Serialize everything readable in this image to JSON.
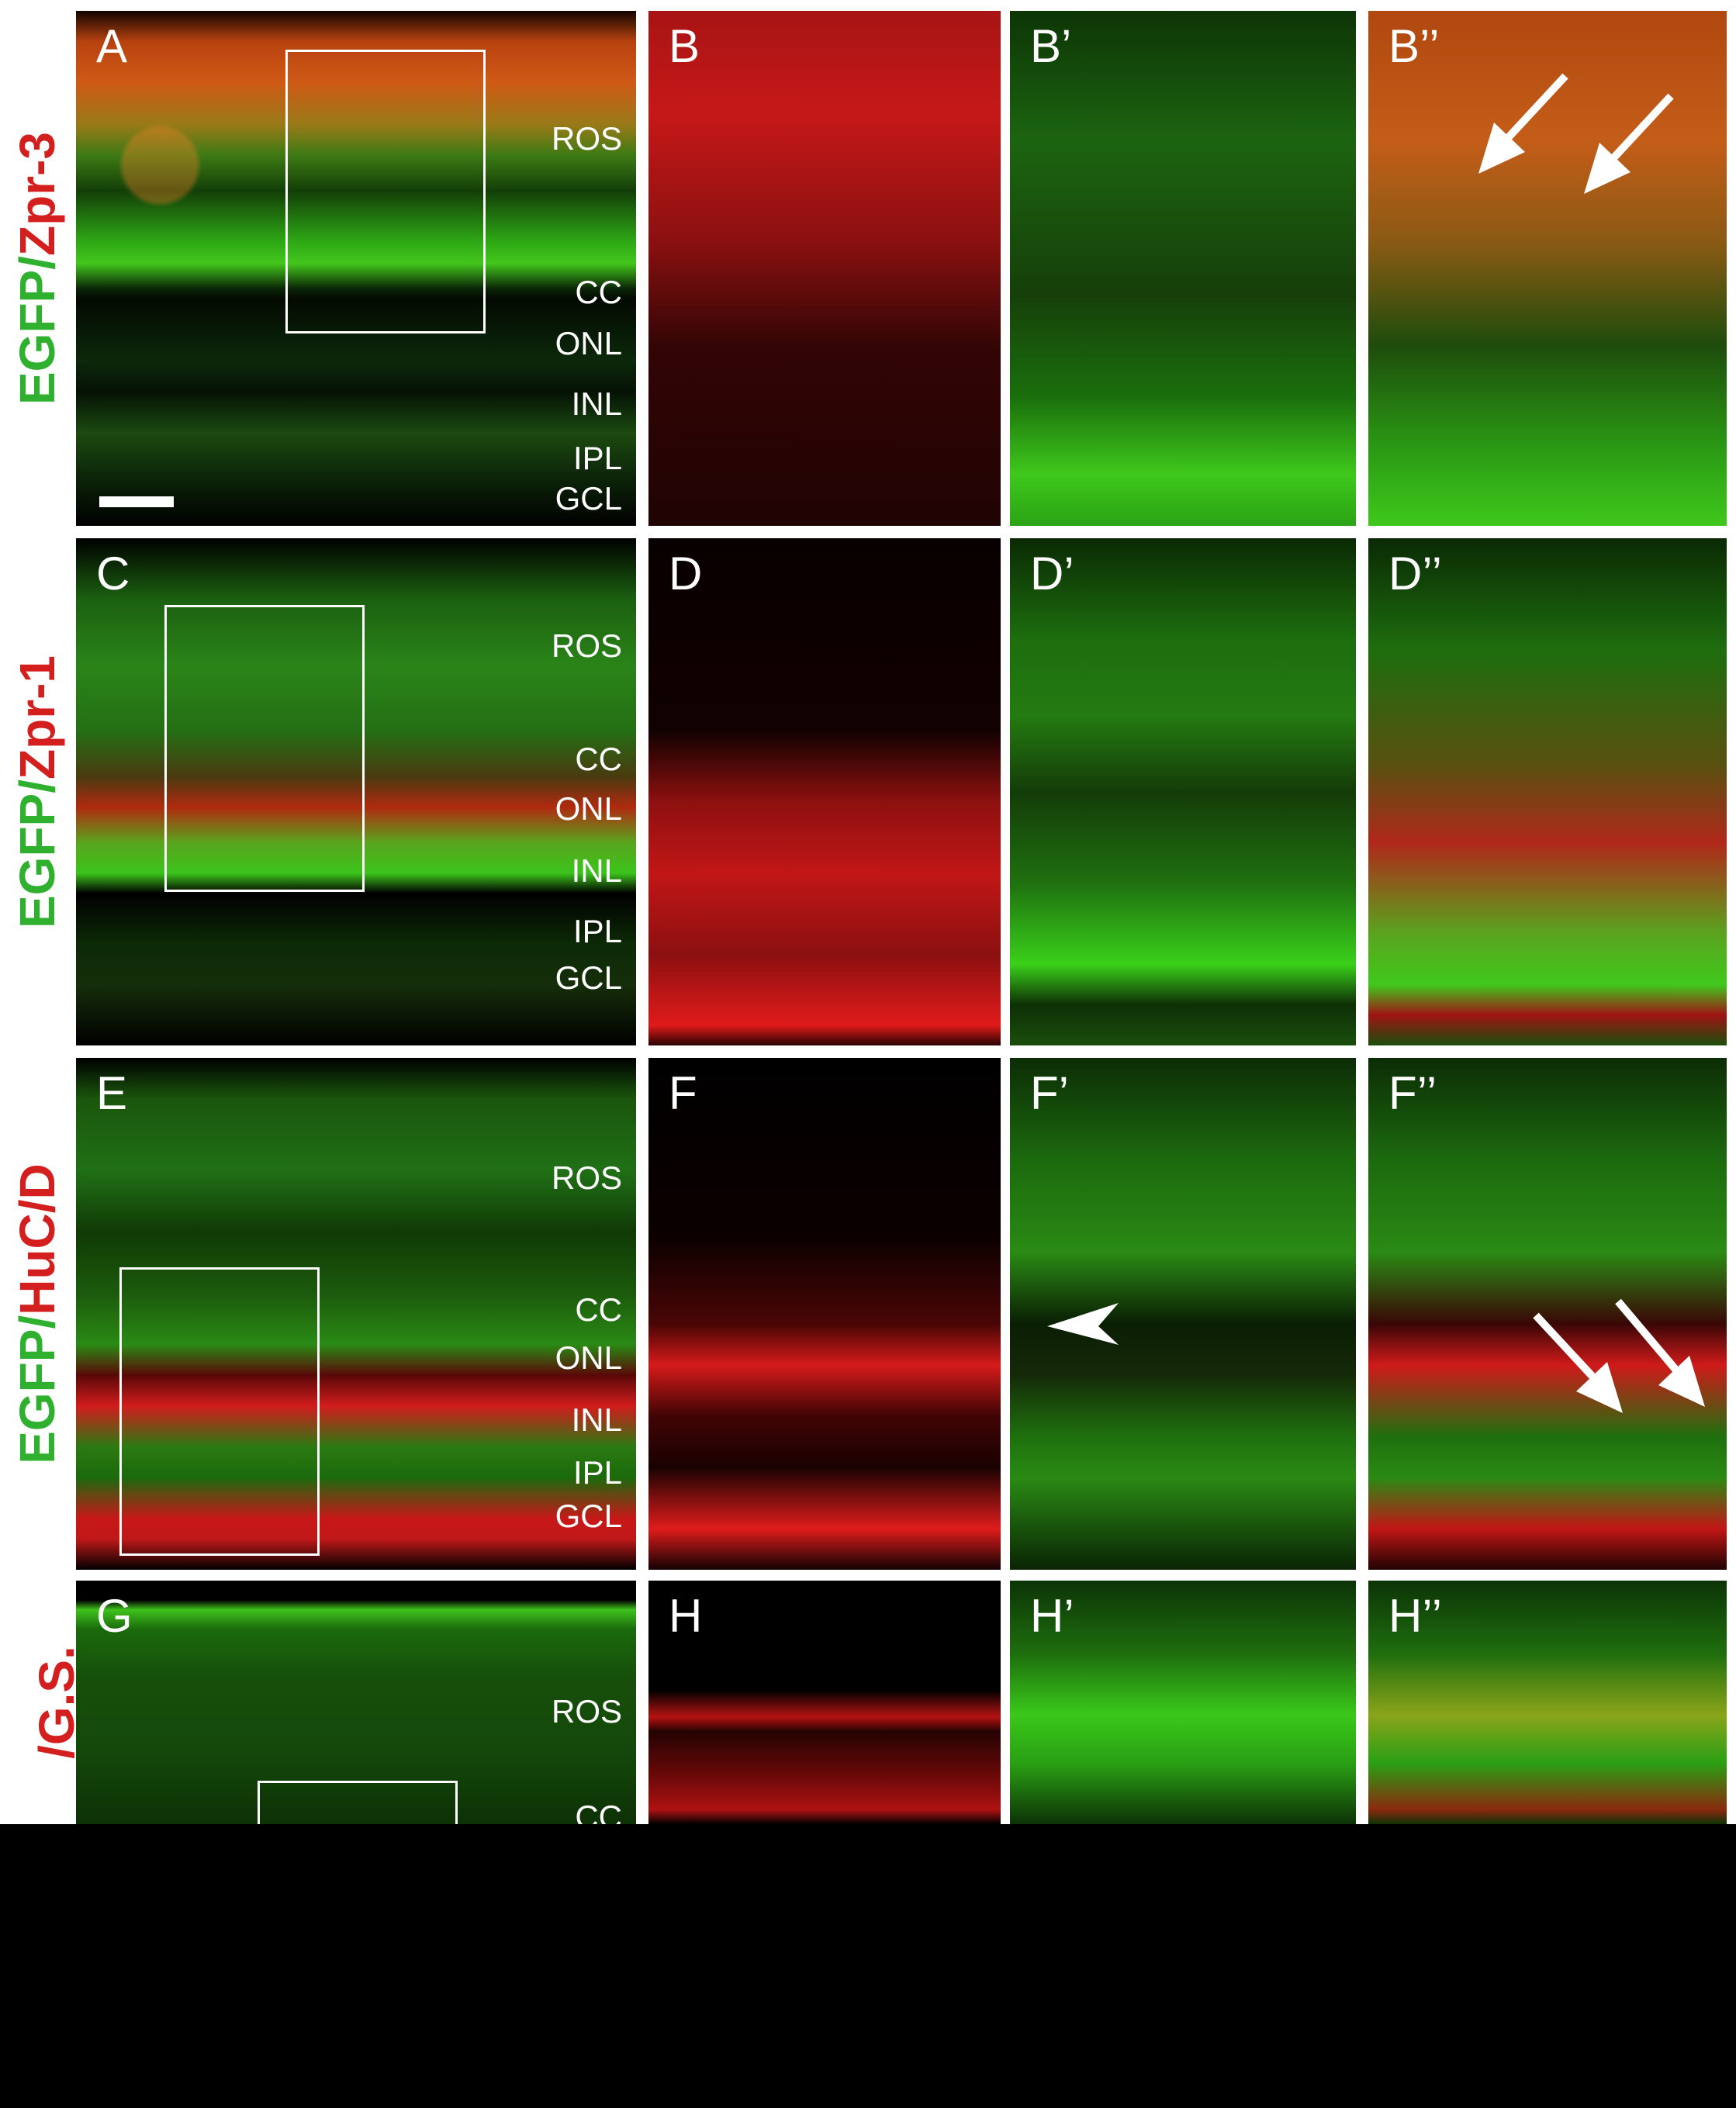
{
  "figure": {
    "row_labels": [
      {
        "green": "EGFP/",
        "red": "Zpr-3"
      },
      {
        "green": "EGFP/",
        "red": "Zpr-1"
      },
      {
        "green": "EGFP/",
        "red": "HuC/D"
      },
      {
        "green": "",
        "red": "/G.S."
      }
    ],
    "panels": {
      "A": "A",
      "B": "B",
      "B1": "B’",
      "B2": "B’’",
      "C": "C",
      "D": "D",
      "D1": "D’",
      "D2": "D’’",
      "E": "E",
      "F": "F",
      "F1": "F’",
      "F2": "F’’",
      "G": "G",
      "H": "H",
      "H1": "H’",
      "H2": "H’’"
    },
    "layers": {
      "ros": "ROS",
      "cc": "CC",
      "onl": "ONL",
      "inl": "INL",
      "ipl": "IPL",
      "gcl": "GCL"
    }
  },
  "colors": {
    "egfp_label": "#2fb02f",
    "marker_label": "#d41f1f",
    "annotation": "#ffffff",
    "background": "#000000"
  }
}
